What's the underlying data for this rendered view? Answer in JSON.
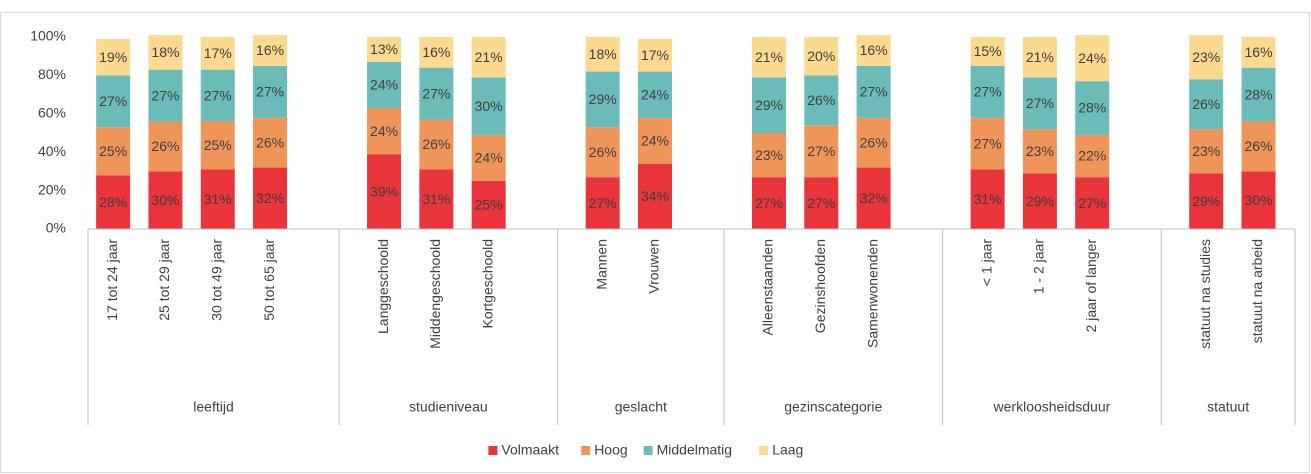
{
  "chart_data": {
    "type": "stacked_bar",
    "categories": [
      "17 tot 24 jaar",
      "25 tot 29 jaar",
      "30 tot 49 jaar",
      "50 tot 65 jaar",
      "Langgeschoold",
      "Middengeschoold",
      "Kortgeschoold",
      "Mannen",
      "Vrouwen",
      "Alleenstaanden",
      "Gezinshoofden",
      "Samenwonenden",
      "< 1 jaar",
      "1 - 2 jaar",
      "2 jaar of langer",
      "statuut na studies",
      "statuut na arbeid"
    ],
    "category_groups": [
      "leeftijd",
      "leeftijd",
      "leeftijd",
      "leeftijd",
      "studieniveau",
      "studieniveau",
      "studieniveau",
      "geslacht",
      "geslacht",
      "gezinscategorie",
      "gezinscategorie",
      "gezinscategorie",
      "werkloosheidsduur",
      "werkloosheidsduur",
      "werkloosheidsduur",
      "statuut",
      "statuut"
    ],
    "series": [
      {
        "name": "Volmaakt",
        "color": "#e8343a",
        "values": [
          28,
          30,
          31,
          32,
          39,
          31,
          25,
          27,
          34,
          27,
          27,
          32,
          31,
          29,
          27,
          29,
          30
        ],
        "value_labels": [
          "28%",
          "30%",
          "31%",
          "32%",
          "39%",
          "31%",
          "25%",
          "27%",
          "34%",
          "27%",
          "27%",
          "32%",
          "31%",
          "29%",
          "27%",
          "29%",
          "30%"
        ]
      },
      {
        "name": "Hoog",
        "color": "#f0955a",
        "values": [
          25,
          26,
          25,
          26,
          24,
          26,
          24,
          26,
          24,
          23,
          27,
          26,
          27,
          23,
          22,
          23,
          26
        ],
        "value_labels": [
          "25%",
          "26%",
          "25%",
          "26%",
          "24%",
          "26%",
          "24%",
          "26%",
          "24%",
          "23%",
          "27%",
          "26%",
          "27%",
          "23%",
          "22%",
          "23%",
          "26%"
        ]
      },
      {
        "name": "Middelmatig",
        "color": "#6bbcb9",
        "values": [
          27,
          27,
          27,
          27,
          24,
          27,
          30,
          29,
          24,
          29,
          26,
          27,
          27,
          27,
          28,
          26,
          28
        ],
        "value_labels": [
          "27%",
          "27%",
          "27%",
          "27%",
          "24%",
          "27%",
          "30%",
          "29%",
          "24%",
          "29%",
          "26%",
          "27%",
          "27%",
          "27%",
          "28%",
          "26%",
          "28%"
        ]
      },
      {
        "name": "Laag",
        "color": "#fbd98f",
        "values": [
          19,
          18,
          17,
          16,
          13,
          16,
          21,
          18,
          17,
          21,
          20,
          16,
          15,
          21,
          24,
          23,
          16
        ],
        "value_labels": [
          "19%",
          "18%",
          "17%",
          "16%",
          "13%",
          "16%",
          "21%",
          "18%",
          "17%",
          "21%",
          "20%",
          "16%",
          "15%",
          "21%",
          "24%",
          "23%",
          "16%"
        ]
      }
    ],
    "ylim": [
      0,
      100
    ],
    "yticks": [
      {
        "value": 0,
        "label": "0%"
      },
      {
        "value": 20,
        "label": "20%"
      },
      {
        "value": 40,
        "label": "40%"
      },
      {
        "value": 60,
        "label": "60%"
      },
      {
        "value": 80,
        "label": "80%"
      },
      {
        "value": 100,
        "label": "100%"
      }
    ],
    "grid": false,
    "legend": "bottom"
  }
}
